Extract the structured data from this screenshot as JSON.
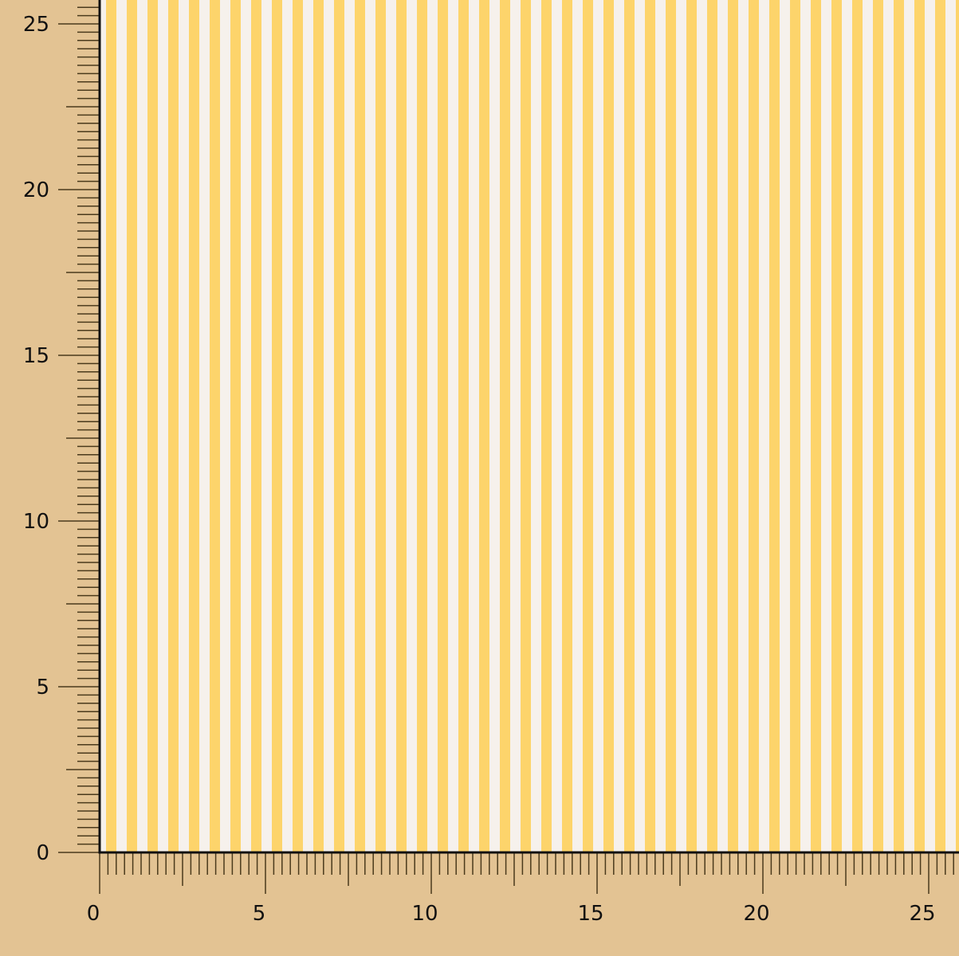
{
  "colors": {
    "background": "#e3c393",
    "stripe_yellow": "#fdd46b",
    "stripe_white": "#f6f1ec",
    "ruler_ink": "#4a3a1c",
    "axis_line": "#111111"
  },
  "ruler": {
    "unit_step_minor": 0.25,
    "unit_step_mid": 2.5,
    "unit_step_major": 5,
    "x_range": [
      0,
      26
    ],
    "y_range": [
      0,
      25.7
    ],
    "x_labels": [
      "0",
      "5",
      "10",
      "15",
      "20",
      "25"
    ],
    "y_labels": [
      "0",
      "5",
      "10",
      "15",
      "20",
      "25"
    ]
  },
  "fabric": {
    "pattern": "vertical stripes",
    "stripe_period_units": 0.625
  }
}
